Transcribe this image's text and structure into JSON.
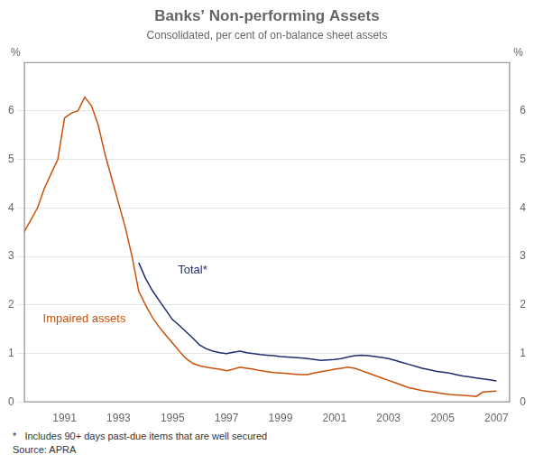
{
  "chart_data": {
    "type": "line",
    "title": "Banks’ Non-performing Assets",
    "subtitle": "Consolidated, per cent of on-balance sheet assets",
    "y_label": "%",
    "y2_label": "%",
    "footnotes": [
      "*   Includes 90+ days past-due items that are well secured",
      "Source: APRA"
    ],
    "xlim": [
      1989.5,
      2007.5
    ],
    "xticks": [
      1991,
      1993,
      1995,
      1997,
      1999,
      2001,
      2003,
      2005,
      2007
    ],
    "ylim": [
      0,
      7
    ],
    "yticks": [
      0,
      1,
      2,
      3,
      4,
      5,
      6
    ],
    "y2lim": [
      0,
      7
    ],
    "y2ticks": [
      0,
      1,
      2,
      3,
      4,
      5,
      6
    ],
    "grid": "y",
    "series": [
      {
        "name": "Impaired assets",
        "color": "#c8500a",
        "x": [
          1989.5,
          1990.0,
          1990.25,
          1990.5,
          1990.75,
          1991.0,
          1991.25,
          1991.5,
          1991.75,
          1992.0,
          1992.25,
          1992.5,
          1992.75,
          1993.0,
          1993.25,
          1993.5,
          1993.75,
          1994.0,
          1994.25,
          1994.5,
          1994.75,
          1995.0,
          1995.25,
          1995.5,
          1995.75,
          1996.0,
          1996.25,
          1996.5,
          1996.75,
          1997.0,
          1997.25,
          1997.5,
          1997.75,
          1998.0,
          1998.25,
          1998.5,
          1998.75,
          1999.0,
          1999.25,
          1999.5,
          1999.75,
          2000.0,
          2000.25,
          2000.5,
          2000.75,
          2001.0,
          2001.25,
          2001.5,
          2001.75,
          2002.0,
          2002.25,
          2002.5,
          2002.75,
          2003.0,
          2003.25,
          2003.5,
          2003.75,
          2004.0,
          2004.25,
          2004.5,
          2004.75,
          2005.0,
          2005.25,
          2005.5,
          2005.75,
          2006.0,
          2006.25,
          2006.5,
          2006.75,
          2007.0
        ],
        "values": [
          3.5,
          4.0,
          4.4,
          4.7,
          5.0,
          5.85,
          5.95,
          6.0,
          6.28,
          6.1,
          5.7,
          5.1,
          4.6,
          4.1,
          3.6,
          3.0,
          2.28,
          2.0,
          1.75,
          1.55,
          1.38,
          1.22,
          1.05,
          0.9,
          0.8,
          0.75,
          0.72,
          0.7,
          0.68,
          0.65,
          0.68,
          0.72,
          0.7,
          0.68,
          0.65,
          0.63,
          0.61,
          0.6,
          0.59,
          0.58,
          0.57,
          0.57,
          0.6,
          0.63,
          0.65,
          0.68,
          0.7,
          0.72,
          0.7,
          0.65,
          0.6,
          0.55,
          0.5,
          0.45,
          0.4,
          0.35,
          0.3,
          0.27,
          0.24,
          0.22,
          0.2,
          0.18,
          0.16,
          0.15,
          0.14,
          0.13,
          0.12,
          0.21,
          0.22,
          0.23
        ]
      },
      {
        "name": "Total*",
        "color": "#1f2d6e",
        "x": [
          1993.75,
          1994.0,
          1994.25,
          1994.5,
          1994.75,
          1995.0,
          1995.25,
          1995.5,
          1995.75,
          1996.0,
          1996.25,
          1996.5,
          1996.75,
          1997.0,
          1997.25,
          1997.5,
          1997.75,
          1998.0,
          1998.25,
          1998.5,
          1998.75,
          1999.0,
          1999.25,
          1999.5,
          1999.75,
          2000.0,
          2000.25,
          2000.5,
          2000.75,
          2001.0,
          2001.25,
          2001.5,
          2001.75,
          2002.0,
          2002.25,
          2002.5,
          2002.75,
          2003.0,
          2003.25,
          2003.5,
          2003.75,
          2004.0,
          2004.25,
          2004.5,
          2004.75,
          2005.0,
          2005.25,
          2005.5,
          2005.75,
          2006.0,
          2006.25,
          2006.5,
          2006.75,
          2007.0
        ],
        "values": [
          2.87,
          2.55,
          2.3,
          2.1,
          1.9,
          1.7,
          1.58,
          1.45,
          1.32,
          1.18,
          1.1,
          1.05,
          1.02,
          1.0,
          1.03,
          1.05,
          1.02,
          1.0,
          0.98,
          0.97,
          0.96,
          0.94,
          0.93,
          0.92,
          0.91,
          0.9,
          0.88,
          0.86,
          0.87,
          0.88,
          0.9,
          0.93,
          0.96,
          0.97,
          0.96,
          0.94,
          0.92,
          0.9,
          0.86,
          0.82,
          0.78,
          0.74,
          0.7,
          0.67,
          0.64,
          0.62,
          0.6,
          0.57,
          0.54,
          0.52,
          0.5,
          0.48,
          0.46,
          0.44
        ]
      }
    ],
    "annotations": [
      {
        "text": "Total*",
        "x": 1995.2,
        "y": 2.65,
        "color": "#1f2d6e"
      },
      {
        "text": "Impaired assets",
        "x": 1990.2,
        "y": 1.65,
        "color": "#c8500a"
      }
    ]
  }
}
